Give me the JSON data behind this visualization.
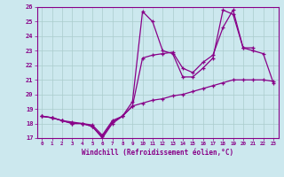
{
  "xlabel": "Windchill (Refroidissement éolien,°C)",
  "xlim": [
    -0.5,
    23.5
  ],
  "ylim": [
    17,
    26
  ],
  "xticks": [
    0,
    1,
    2,
    3,
    4,
    5,
    6,
    7,
    8,
    9,
    10,
    11,
    12,
    13,
    14,
    15,
    16,
    17,
    18,
    19,
    20,
    21,
    22,
    23
  ],
  "yticks": [
    17,
    18,
    19,
    20,
    21,
    22,
    23,
    24,
    25,
    26
  ],
  "line_color": "#880088",
  "bg_color": "#cce8ee",
  "grid_color": "#aacccc",
  "lines": [
    {
      "x": [
        0,
        1,
        2,
        3,
        4,
        5,
        6,
        7,
        8,
        9,
        10,
        11,
        12,
        13,
        14,
        15,
        16,
        17,
        18,
        19,
        20,
        21
      ],
      "y": [
        18.5,
        18.4,
        18.2,
        18.0,
        18.0,
        17.8,
        17.0,
        18.0,
        18.5,
        19.5,
        25.7,
        25.0,
        23.0,
        22.8,
        21.2,
        21.2,
        21.8,
        22.5,
        25.8,
        25.5,
        23.2,
        23.2
      ]
    },
    {
      "x": [
        0,
        1,
        2,
        3,
        4,
        5,
        6,
        7,
        8,
        9,
        10,
        11,
        12,
        13,
        14,
        15,
        16,
        17,
        18,
        19,
        20,
        21,
        22,
        23
      ],
      "y": [
        18.5,
        18.4,
        18.2,
        18.0,
        18.0,
        17.8,
        17.1,
        18.1,
        18.5,
        19.2,
        22.5,
        22.7,
        22.8,
        22.9,
        21.8,
        21.5,
        22.2,
        22.7,
        24.6,
        25.8,
        23.2,
        23.0,
        22.8,
        20.8
      ]
    },
    {
      "x": [
        0,
        1,
        2,
        3,
        4,
        5,
        6,
        7,
        8,
        9,
        10,
        11,
        12,
        13,
        14,
        15,
        16,
        17,
        18,
        19,
        20,
        21,
        22,
        23
      ],
      "y": [
        18.5,
        18.4,
        18.2,
        18.1,
        18.0,
        17.9,
        17.2,
        18.2,
        18.5,
        19.2,
        19.4,
        19.6,
        19.7,
        19.9,
        20.0,
        20.2,
        20.4,
        20.6,
        20.8,
        21.0,
        21.0,
        21.0,
        21.0,
        20.9
      ]
    }
  ]
}
